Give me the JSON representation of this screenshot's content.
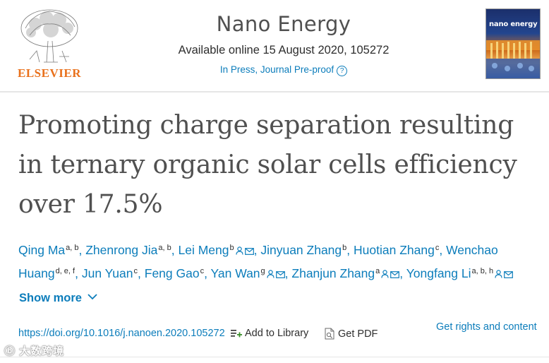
{
  "publisher": {
    "name": "ELSEVIER"
  },
  "journal": {
    "title": "Nano Energy",
    "availability": "Available online 15 August 2020, 105272",
    "status": "In Press, Journal Pre-proof",
    "help_icon": "?",
    "cover_title": "nano energy"
  },
  "article": {
    "title": "Promoting charge separation resulting in ternary organic solar cells efficiency over 17.5%"
  },
  "authors": [
    {
      "name": "Qing Ma",
      "sup": "a, b",
      "icons": []
    },
    {
      "name": "Zhenrong Jia",
      "sup": "a, b",
      "icons": []
    },
    {
      "name": "Lei Meng",
      "sup": "b",
      "icons": [
        "person-icon",
        "email-icon"
      ]
    },
    {
      "name": "Jinyuan Zhang",
      "sup": "b",
      "icons": []
    },
    {
      "name": "Huotian Zhang",
      "sup": "c",
      "icons": []
    },
    {
      "name": "Wenchao Huang",
      "sup": "d, e, f",
      "icons": []
    },
    {
      "name": "Jun Yuan",
      "sup": "c",
      "icons": []
    },
    {
      "name": "Feng Gao",
      "sup": "c",
      "icons": []
    },
    {
      "name": "Yan Wan",
      "sup": "g",
      "icons": [
        "person-icon",
        "email-icon"
      ]
    },
    {
      "name": "Zhanjun Zhang",
      "sup": "a",
      "icons": [
        "person-icon",
        "email-icon"
      ]
    },
    {
      "name": "Yongfang Li",
      "sup": "a, b, h",
      "icons": [
        "person-icon",
        "email-icon"
      ]
    }
  ],
  "actions": {
    "show_more": "Show more",
    "doi": "https://doi.org/10.1016/j.nanoen.2020.105272",
    "add_to_library": "Add to Library",
    "get_pdf": "Get PDF",
    "rights": "Get rights and content"
  },
  "watermark": "大数跨境",
  "colors": {
    "link": "#0c7dbb",
    "publisher": "#e9711c",
    "text": "#2e2e2e",
    "title": "#505050"
  }
}
